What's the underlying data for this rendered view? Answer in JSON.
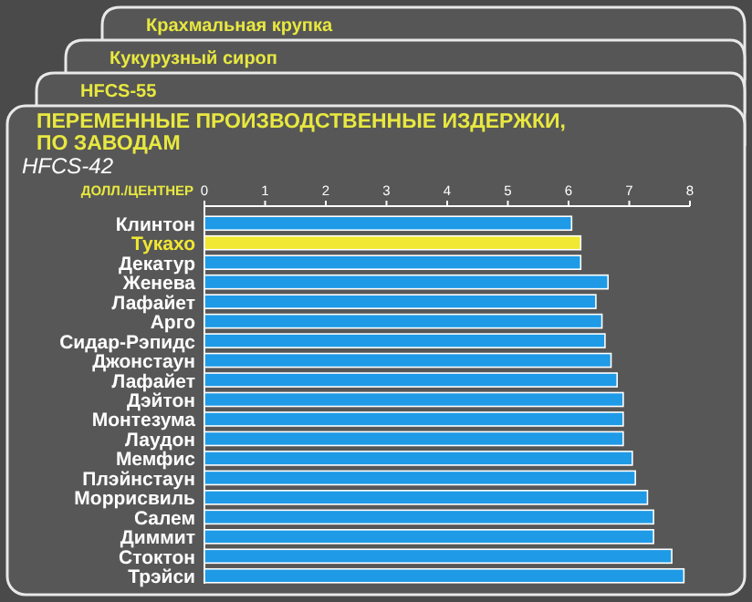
{
  "chart_data": {
    "type": "bar",
    "orientation": "horizontal",
    "title": "ПЕРЕМЕННЫЕ ПРОИЗВОДСТВЕННЫЕ ИЗДЕРЖКИ, ПО ЗАВОДАМ",
    "subtitle": "HFCS-42",
    "xlabel": "ДОЛЛ./ЦЕНТНЕР",
    "annotations": [
      "Крахмальная крупка",
      "Кукурузный сироп",
      "HFCS-55"
    ],
    "categories": [
      "Клинтон",
      "Тукахо",
      "Декатур",
      "Женева",
      "Лафайет",
      "Арго",
      "Сидар-Рэпидс",
      "Джонстаун",
      "Лафайет",
      "Дэйтон",
      "Монтезума",
      "Лаудон",
      "Мемфис",
      "Плэйнстаун",
      "Моррисвиль",
      "Салем",
      "Диммит",
      "Стоктон",
      "Трэйси"
    ],
    "values": [
      6.05,
      6.2,
      6.2,
      6.65,
      6.45,
      6.55,
      6.6,
      6.7,
      6.8,
      6.9,
      6.9,
      6.9,
      7.05,
      7.1,
      7.3,
      7.4,
      7.4,
      7.7,
      7.9
    ],
    "colors": [
      "#1e9ae6",
      "#f0e832",
      "#1e9ae6",
      "#1e9ae6",
      "#1e9ae6",
      "#1e9ae6",
      "#1e9ae6",
      "#1e9ae6",
      "#1e9ae6",
      "#1e9ae6",
      "#1e9ae6",
      "#1e9ae6",
      "#1e9ae6",
      "#1e9ae6",
      "#1e9ae6",
      "#1e9ae6",
      "#1e9ae6",
      "#1e9ae6",
      "#1e9ae6"
    ],
    "xlim": [
      0,
      8
    ],
    "xticks": [
      0,
      1,
      2,
      3,
      4,
      5,
      6,
      7,
      8
    ],
    "grid": false
  }
}
